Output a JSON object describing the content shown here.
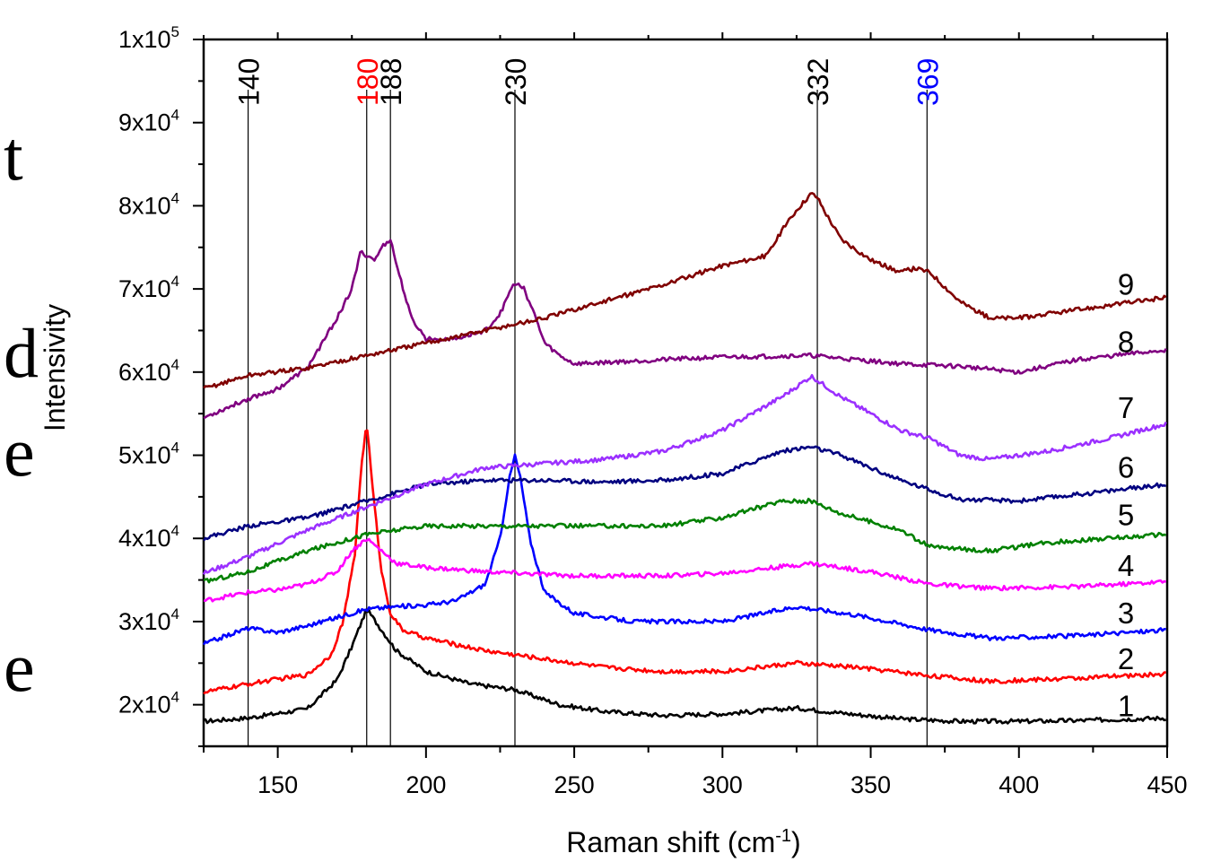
{
  "chart_data": {
    "type": "line",
    "xlabel": "Raman shift (cm",
    "xlabel_sup": "-1",
    "xlabel_suffix": ")",
    "ylabel": "Intensivity",
    "xlim": [
      125,
      450
    ],
    "ylim": [
      15000,
      100000
    ],
    "x_ticks": [
      150,
      200,
      250,
      300,
      350,
      400,
      450
    ],
    "y_ticks": [
      {
        "value": 20000,
        "mantissa": "2x10",
        "exp": "4"
      },
      {
        "value": 30000,
        "mantissa": "3x10",
        "exp": "4"
      },
      {
        "value": 40000,
        "mantissa": "4x10",
        "exp": "4"
      },
      {
        "value": 50000,
        "mantissa": "5x10",
        "exp": "4"
      },
      {
        "value": 60000,
        "mantissa": "6x10",
        "exp": "4"
      },
      {
        "value": 70000,
        "mantissa": "7x10",
        "exp": "4"
      },
      {
        "value": 80000,
        "mantissa": "8x10",
        "exp": "4"
      },
      {
        "value": 90000,
        "mantissa": "9x10",
        "exp": "4"
      },
      {
        "value": 100000,
        "mantissa": "1x10",
        "exp": "5"
      }
    ],
    "reference_lines": [
      {
        "x": 140,
        "label": "140",
        "color": "#000000"
      },
      {
        "x": 180,
        "label": "180",
        "color": "#ff0000"
      },
      {
        "x": 188,
        "label": "188",
        "color": "#000000"
      },
      {
        "x": 230,
        "label": "230",
        "color": "#000000"
      },
      {
        "x": 332,
        "label": "332",
        "color": "#000000"
      },
      {
        "x": 369,
        "label": "369",
        "color": "#0000ff"
      }
    ],
    "series": [
      {
        "name": "1",
        "color": "#000000",
        "label_value": 18600,
        "x": [
          125,
          140,
          160,
          170,
          175,
          180,
          185,
          190,
          200,
          215,
          230,
          245,
          260,
          280,
          300,
          325,
          340,
          360,
          380,
          400,
          420,
          450
        ],
        "values": [
          18000,
          18400,
          19500,
          23000,
          27000,
          31500,
          29000,
          26500,
          24000,
          22500,
          21800,
          20000,
          19200,
          18700,
          18900,
          19600,
          19000,
          18300,
          18000,
          18000,
          18100,
          18400
        ]
      },
      {
        "name": "2",
        "color": "#ff0000",
        "label_value": 24300,
        "x": [
          125,
          145,
          160,
          168,
          172,
          176,
          178,
          180,
          182,
          185,
          188,
          192,
          200,
          220,
          240,
          260,
          280,
          300,
          325,
          345,
          370,
          390,
          420,
          450
        ],
        "values": [
          21500,
          22800,
          23600,
          26000,
          30000,
          38000,
          48000,
          54000,
          46000,
          36000,
          31000,
          29000,
          28000,
          26500,
          25500,
          24500,
          24000,
          24000,
          25000,
          24500,
          23500,
          22800,
          23200,
          23700
        ]
      },
      {
        "name": "3",
        "color": "#0000ff",
        "label_value": 29800,
        "x": [
          125,
          135,
          140,
          150,
          160,
          170,
          180,
          190,
          200,
          210,
          220,
          225,
          228,
          230,
          232,
          235,
          240,
          250,
          270,
          300,
          325,
          345,
          370,
          390,
          420,
          450
        ],
        "values": [
          27300,
          28600,
          29200,
          28700,
          29500,
          30500,
          31500,
          31800,
          32000,
          32500,
          34500,
          40000,
          47000,
          50000,
          47000,
          40000,
          33500,
          31000,
          30000,
          30000,
          31800,
          30800,
          29000,
          28000,
          28300,
          29000
        ]
      },
      {
        "name": "4",
        "color": "#ff00ff",
        "label_value": 35500,
        "x": [
          125,
          140,
          150,
          160,
          170,
          175,
          180,
          185,
          190,
          200,
          220,
          250,
          280,
          300,
          330,
          350,
          370,
          390,
          420,
          450
        ],
        "values": [
          32500,
          33500,
          33800,
          34500,
          36000,
          38500,
          40000,
          38500,
          37000,
          36500,
          36000,
          35500,
          35500,
          35800,
          37000,
          36000,
          34500,
          34000,
          34200,
          34800
        ]
      },
      {
        "name": "5",
        "color": "#008000",
        "label_value": 41600,
        "x": [
          125,
          140,
          160,
          180,
          190,
          200,
          220,
          250,
          280,
          300,
          320,
          330,
          340,
          360,
          370,
          390,
          410,
          450
        ],
        "values": [
          34800,
          36000,
          38500,
          40500,
          41000,
          41500,
          41500,
          41500,
          41500,
          42500,
          44500,
          44500,
          43000,
          41000,
          39000,
          38500,
          39500,
          40500
        ]
      },
      {
        "name": "6",
        "color": "#000080",
        "label_value": 47300,
        "x": [
          125,
          140,
          160,
          180,
          200,
          220,
          240,
          260,
          280,
          300,
          320,
          330,
          340,
          360,
          380,
          400,
          420,
          450
        ],
        "values": [
          40000,
          41500,
          42500,
          44500,
          46500,
          47000,
          47000,
          46800,
          47000,
          47800,
          50500,
          51000,
          50000,
          47000,
          44700,
          44500,
          45300,
          46500
        ]
      },
      {
        "name": "7",
        "color": "#9b30ff",
        "label_value": 54500,
        "x": [
          125,
          140,
          160,
          180,
          200,
          220,
          240,
          260,
          280,
          300,
          320,
          330,
          340,
          360,
          370,
          380,
          390,
          410,
          430,
          450
        ],
        "values": [
          35800,
          37800,
          41000,
          43800,
          46500,
          48500,
          49000,
          49500,
          50500,
          53000,
          57000,
          59500,
          57000,
          53000,
          52000,
          50000,
          49500,
          50500,
          52000,
          53800
        ]
      },
      {
        "name": "8",
        "color": "#800080",
        "label_value": 62400,
        "x": [
          125,
          140,
          150,
          160,
          165,
          170,
          175,
          178,
          180,
          183,
          185,
          188,
          190,
          195,
          200,
          210,
          220,
          225,
          228,
          230,
          233,
          236,
          240,
          245,
          250,
          280,
          300,
          330,
          360,
          380,
          400,
          420,
          450
        ],
        "values": [
          54500,
          56800,
          58000,
          60500,
          63500,
          66500,
          70000,
          74500,
          74000,
          73500,
          75000,
          76000,
          73000,
          66500,
          64000,
          64000,
          65000,
          67000,
          69500,
          70700,
          70000,
          67500,
          63500,
          62000,
          61000,
          61500,
          61800,
          62000,
          61000,
          60700,
          60000,
          61500,
          62700
        ]
      },
      {
        "name": "9",
        "color": "#800000",
        "label_value": 69300,
        "x": [
          125,
          140,
          160,
          180,
          200,
          220,
          240,
          260,
          280,
          300,
          315,
          320,
          325,
          330,
          332,
          335,
          340,
          350,
          360,
          365,
          370,
          380,
          390,
          400,
          420,
          450
        ],
        "values": [
          58000,
          59600,
          60500,
          62000,
          63500,
          65000,
          66500,
          68500,
          70500,
          72800,
          74000,
          77000,
          79500,
          81500,
          81000,
          79000,
          76000,
          73500,
          72000,
          72500,
          72000,
          68500,
          66500,
          66500,
          67500,
          69000
        ]
      }
    ]
  },
  "background_fragments": [
    "t",
    "d",
    "e",
    "e"
  ]
}
